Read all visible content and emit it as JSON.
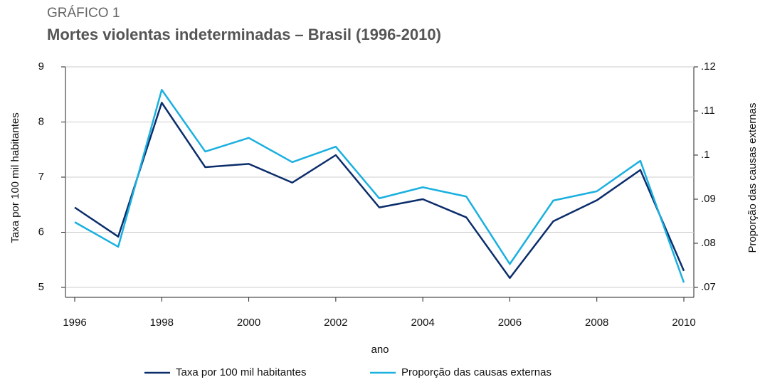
{
  "chart_data": {
    "type": "line",
    "kicker": "GRÁFICO 1",
    "title": "Mortes violentas indeterminadas – Brasil (1996-2010)",
    "xlabel": "ano",
    "ylabel": "Taxa por 100 mil habitantes",
    "y2label": "Proporção das causas externas",
    "x": [
      1996,
      1997,
      1998,
      1999,
      2000,
      2001,
      2002,
      2003,
      2004,
      2005,
      2006,
      2007,
      2008,
      2009,
      2010
    ],
    "series": [
      {
        "name": "Taxa por 100 mil habitantes",
        "color": "#0b2d6b",
        "axis": "y",
        "values": [
          6.45,
          5.92,
          8.35,
          7.18,
          7.24,
          6.9,
          7.4,
          6.45,
          6.6,
          6.27,
          5.17,
          6.2,
          6.58,
          7.13,
          5.3
        ]
      },
      {
        "name": "Proporção das causas externas",
        "color": "#1ab0e0",
        "axis": "y2",
        "values": [
          0.0848,
          0.0792,
          0.1148,
          0.1008,
          0.1039,
          0.0984,
          0.1019,
          0.0902,
          0.0927,
          0.0906,
          0.0753,
          0.0897,
          0.0918,
          0.0987,
          0.0711
        ]
      }
    ],
    "xlim": [
      1996,
      2010
    ],
    "xticks": [
      1996,
      1998,
      2000,
      2002,
      2004,
      2006,
      2008,
      2010
    ],
    "ylim": [
      5,
      9
    ],
    "yticks": [
      5,
      6,
      7,
      8,
      9
    ],
    "y2lim": [
      0.07,
      0.12
    ],
    "y2ticks": [
      {
        "value": 0.07,
        "label": ".07"
      },
      {
        "value": 0.08,
        "label": ".08"
      },
      {
        "value": 0.09,
        "label": ".09"
      },
      {
        "value": 0.1,
        "label": ".1"
      },
      {
        "value": 0.11,
        "label": ".11"
      },
      {
        "value": 0.12,
        "label": ".12"
      }
    ],
    "grid": true,
    "legend": "bottom"
  }
}
